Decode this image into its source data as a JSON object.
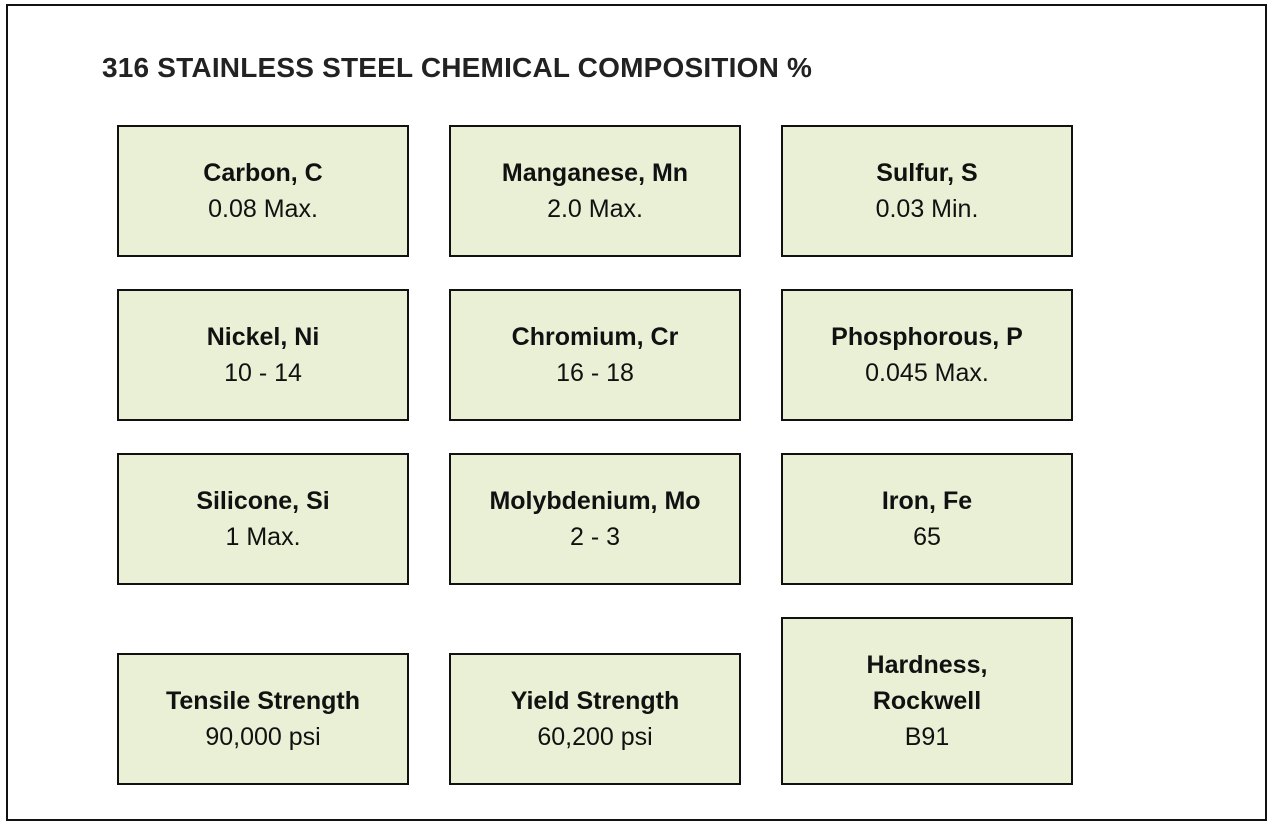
{
  "title": "316 STAINLESS STEEL CHEMICAL COMPOSITION %",
  "cards": [
    {
      "label": "Carbon, C",
      "value": "0.08 Max."
    },
    {
      "label": "Manganese, Mn",
      "value": "2.0 Max."
    },
    {
      "label": "Sulfur, S",
      "value": "0.03 Min."
    },
    {
      "label": "Nickel, Ni",
      "value": "10 - 14"
    },
    {
      "label": "Chromium, Cr",
      "value": "16 - 18"
    },
    {
      "label": "Phosphorous, P",
      "value": "0.045 Max."
    },
    {
      "label": "Silicone, Si",
      "value": "1 Max."
    },
    {
      "label": "Molybdenium, Mo",
      "value": "2 - 3"
    },
    {
      "label": "Iron, Fe",
      "value": "65"
    },
    {
      "label": "Tensile Strength",
      "value": "90,000 psi"
    },
    {
      "label": "Yield Strength",
      "value": "60,200 psi"
    },
    {
      "label": "Hardness, Rockwell",
      "value": "B91"
    }
  ],
  "colors": {
    "card_fill": "#eaf0d6",
    "border": "#111111",
    "title": "#222222"
  }
}
